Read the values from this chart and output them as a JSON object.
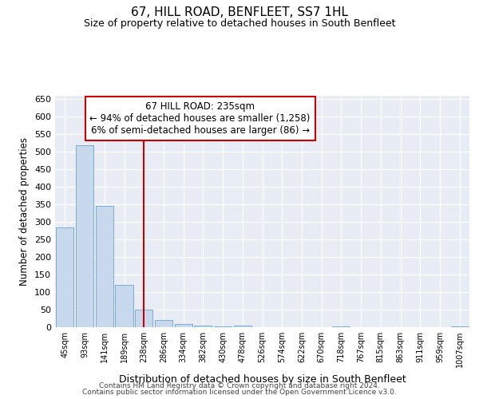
{
  "title": "67, HILL ROAD, BENFLEET, SS7 1HL",
  "subtitle": "Size of property relative to detached houses in South Benfleet",
  "xlabel": "Distribution of detached houses by size in South Benfleet",
  "ylabel": "Number of detached properties",
  "footer1": "Contains HM Land Registry data © Crown copyright and database right 2024.",
  "footer2": "Contains public sector information licensed under the Open Government Licence v3.0.",
  "annotation_line1": "67 HILL ROAD: 235sqm",
  "annotation_line2": "← 94% of detached houses are smaller (1,258)",
  "annotation_line3": "6% of semi-detached houses are larger (86) →",
  "bar_color": "#c8d9ed",
  "bar_edge_color": "#7aadd4",
  "vline_color": "#cc0000",
  "annotation_box_edgecolor": "#cc0000",
  "bg_color": "#e8edf5",
  "categories": [
    "45sqm",
    "93sqm",
    "141sqm",
    "189sqm",
    "238sqm",
    "286sqm",
    "334sqm",
    "382sqm",
    "430sqm",
    "478sqm",
    "526sqm",
    "574sqm",
    "622sqm",
    "670sqm",
    "718sqm",
    "767sqm",
    "815sqm",
    "863sqm",
    "911sqm",
    "959sqm",
    "1007sqm"
  ],
  "values": [
    285,
    520,
    345,
    120,
    50,
    20,
    10,
    5,
    2,
    5,
    0,
    0,
    0,
    0,
    2,
    0,
    0,
    0,
    0,
    0,
    2
  ],
  "ylim": [
    0,
    660
  ],
  "yticks": [
    0,
    50,
    100,
    150,
    200,
    250,
    300,
    350,
    400,
    450,
    500,
    550,
    600,
    650
  ],
  "vline_x_index": 4,
  "figsize": [
    6.0,
    5.0
  ],
  "dpi": 100
}
